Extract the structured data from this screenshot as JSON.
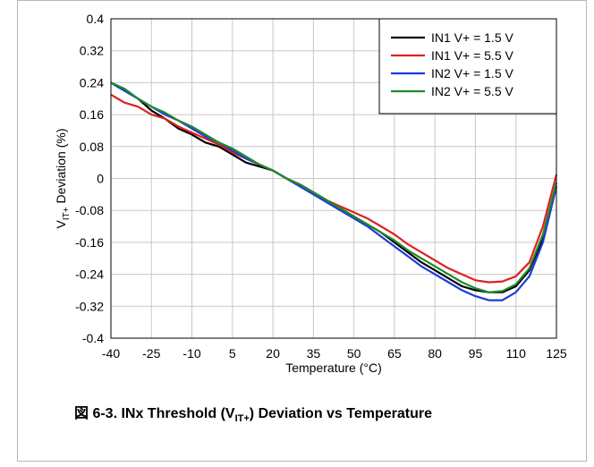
{
  "figure": {
    "caption_prefix": "図 6-3. INx Threshold (V",
    "caption_sub": "IT+",
    "caption_suffix": ") Deviation vs Temperature"
  },
  "chart_data": {
    "type": "line",
    "xlabel": "Temperature (°C)",
    "ylabel_main": "V",
    "ylabel_sub": "IT+",
    "ylabel_rest": " Deviation (%)",
    "xlim": [
      -40,
      125
    ],
    "ylim": [
      -0.4,
      0.4
    ],
    "x_ticks": [
      -40,
      -25,
      -10,
      5,
      20,
      35,
      50,
      65,
      80,
      95,
      110,
      125
    ],
    "y_ticks": [
      0.4,
      0.32,
      0.24,
      0.16,
      0.08,
      0,
      -0.08,
      -0.16,
      -0.24,
      -0.32,
      -0.4
    ],
    "y_tick_labels": [
      "0.4",
      "0.32",
      "0.24",
      "0.16",
      "0.08",
      "0",
      "-0.08",
      "-0.16",
      "-0.24",
      "-0.32",
      "-0.4"
    ],
    "grid": true,
    "legend_position": "top-right",
    "series": [
      {
        "name": "IN1 V+ = 1.5 V",
        "color": "#000000",
        "x": [
          -40,
          -35,
          -30,
          -25,
          -20,
          -15,
          -10,
          -5,
          0,
          5,
          10,
          15,
          20,
          25,
          30,
          35,
          40,
          45,
          50,
          55,
          60,
          65,
          70,
          75,
          80,
          85,
          90,
          95,
          100,
          105,
          110,
          115,
          120,
          125
        ],
        "y": [
          0.24,
          0.22,
          0.2,
          0.17,
          0.15,
          0.125,
          0.11,
          0.09,
          0.08,
          0.06,
          0.04,
          0.03,
          0.02,
          0.0,
          -0.015,
          -0.035,
          -0.055,
          -0.075,
          -0.095,
          -0.115,
          -0.135,
          -0.16,
          -0.185,
          -0.21,
          -0.23,
          -0.25,
          -0.27,
          -0.28,
          -0.285,
          -0.285,
          -0.27,
          -0.23,
          -0.15,
          -0.02
        ]
      },
      {
        "name": "IN1 V+ = 5.5 V",
        "color": "#e02020",
        "x": [
          -40,
          -35,
          -30,
          -25,
          -20,
          -15,
          -10,
          -5,
          0,
          5,
          10,
          15,
          20,
          25,
          30,
          35,
          40,
          45,
          50,
          55,
          60,
          65,
          70,
          75,
          80,
          85,
          90,
          95,
          100,
          105,
          110,
          115,
          120,
          125
        ],
        "y": [
          0.21,
          0.19,
          0.18,
          0.16,
          0.15,
          0.13,
          0.115,
          0.1,
          0.085,
          0.065,
          0.05,
          0.035,
          0.02,
          0.0,
          -0.015,
          -0.035,
          -0.055,
          -0.07,
          -0.085,
          -0.1,
          -0.12,
          -0.14,
          -0.165,
          -0.185,
          -0.205,
          -0.225,
          -0.24,
          -0.255,
          -0.26,
          -0.258,
          -0.245,
          -0.21,
          -0.12,
          0.01
        ]
      },
      {
        "name": "IN2 V+ = 1.5 V",
        "color": "#1f3ad8",
        "x": [
          -40,
          -35,
          -30,
          -25,
          -20,
          -15,
          -10,
          -5,
          0,
          5,
          10,
          15,
          20,
          25,
          30,
          35,
          40,
          45,
          50,
          55,
          60,
          65,
          70,
          75,
          80,
          85,
          90,
          95,
          100,
          105,
          110,
          115,
          120,
          125
        ],
        "y": [
          0.24,
          0.22,
          0.2,
          0.18,
          0.16,
          0.145,
          0.125,
          0.105,
          0.09,
          0.07,
          0.05,
          0.035,
          0.02,
          0.0,
          -0.02,
          -0.04,
          -0.06,
          -0.08,
          -0.1,
          -0.12,
          -0.145,
          -0.17,
          -0.195,
          -0.22,
          -0.24,
          -0.26,
          -0.28,
          -0.295,
          -0.305,
          -0.305,
          -0.285,
          -0.245,
          -0.16,
          -0.02
        ]
      },
      {
        "name": "IN2 V+ = 5.5 V",
        "color": "#1f8a2a",
        "x": [
          -40,
          -35,
          -30,
          -25,
          -20,
          -15,
          -10,
          -5,
          0,
          5,
          10,
          15,
          20,
          25,
          30,
          35,
          40,
          45,
          50,
          55,
          60,
          65,
          70,
          75,
          80,
          85,
          90,
          95,
          100,
          105,
          110,
          115,
          120,
          125
        ],
        "y": [
          0.24,
          0.225,
          0.2,
          0.18,
          0.165,
          0.145,
          0.13,
          0.11,
          0.09,
          0.075,
          0.055,
          0.035,
          0.02,
          0.0,
          -0.015,
          -0.035,
          -0.055,
          -0.075,
          -0.095,
          -0.115,
          -0.135,
          -0.155,
          -0.18,
          -0.2,
          -0.22,
          -0.24,
          -0.26,
          -0.275,
          -0.285,
          -0.282,
          -0.265,
          -0.225,
          -0.14,
          -0.01
        ]
      }
    ]
  }
}
